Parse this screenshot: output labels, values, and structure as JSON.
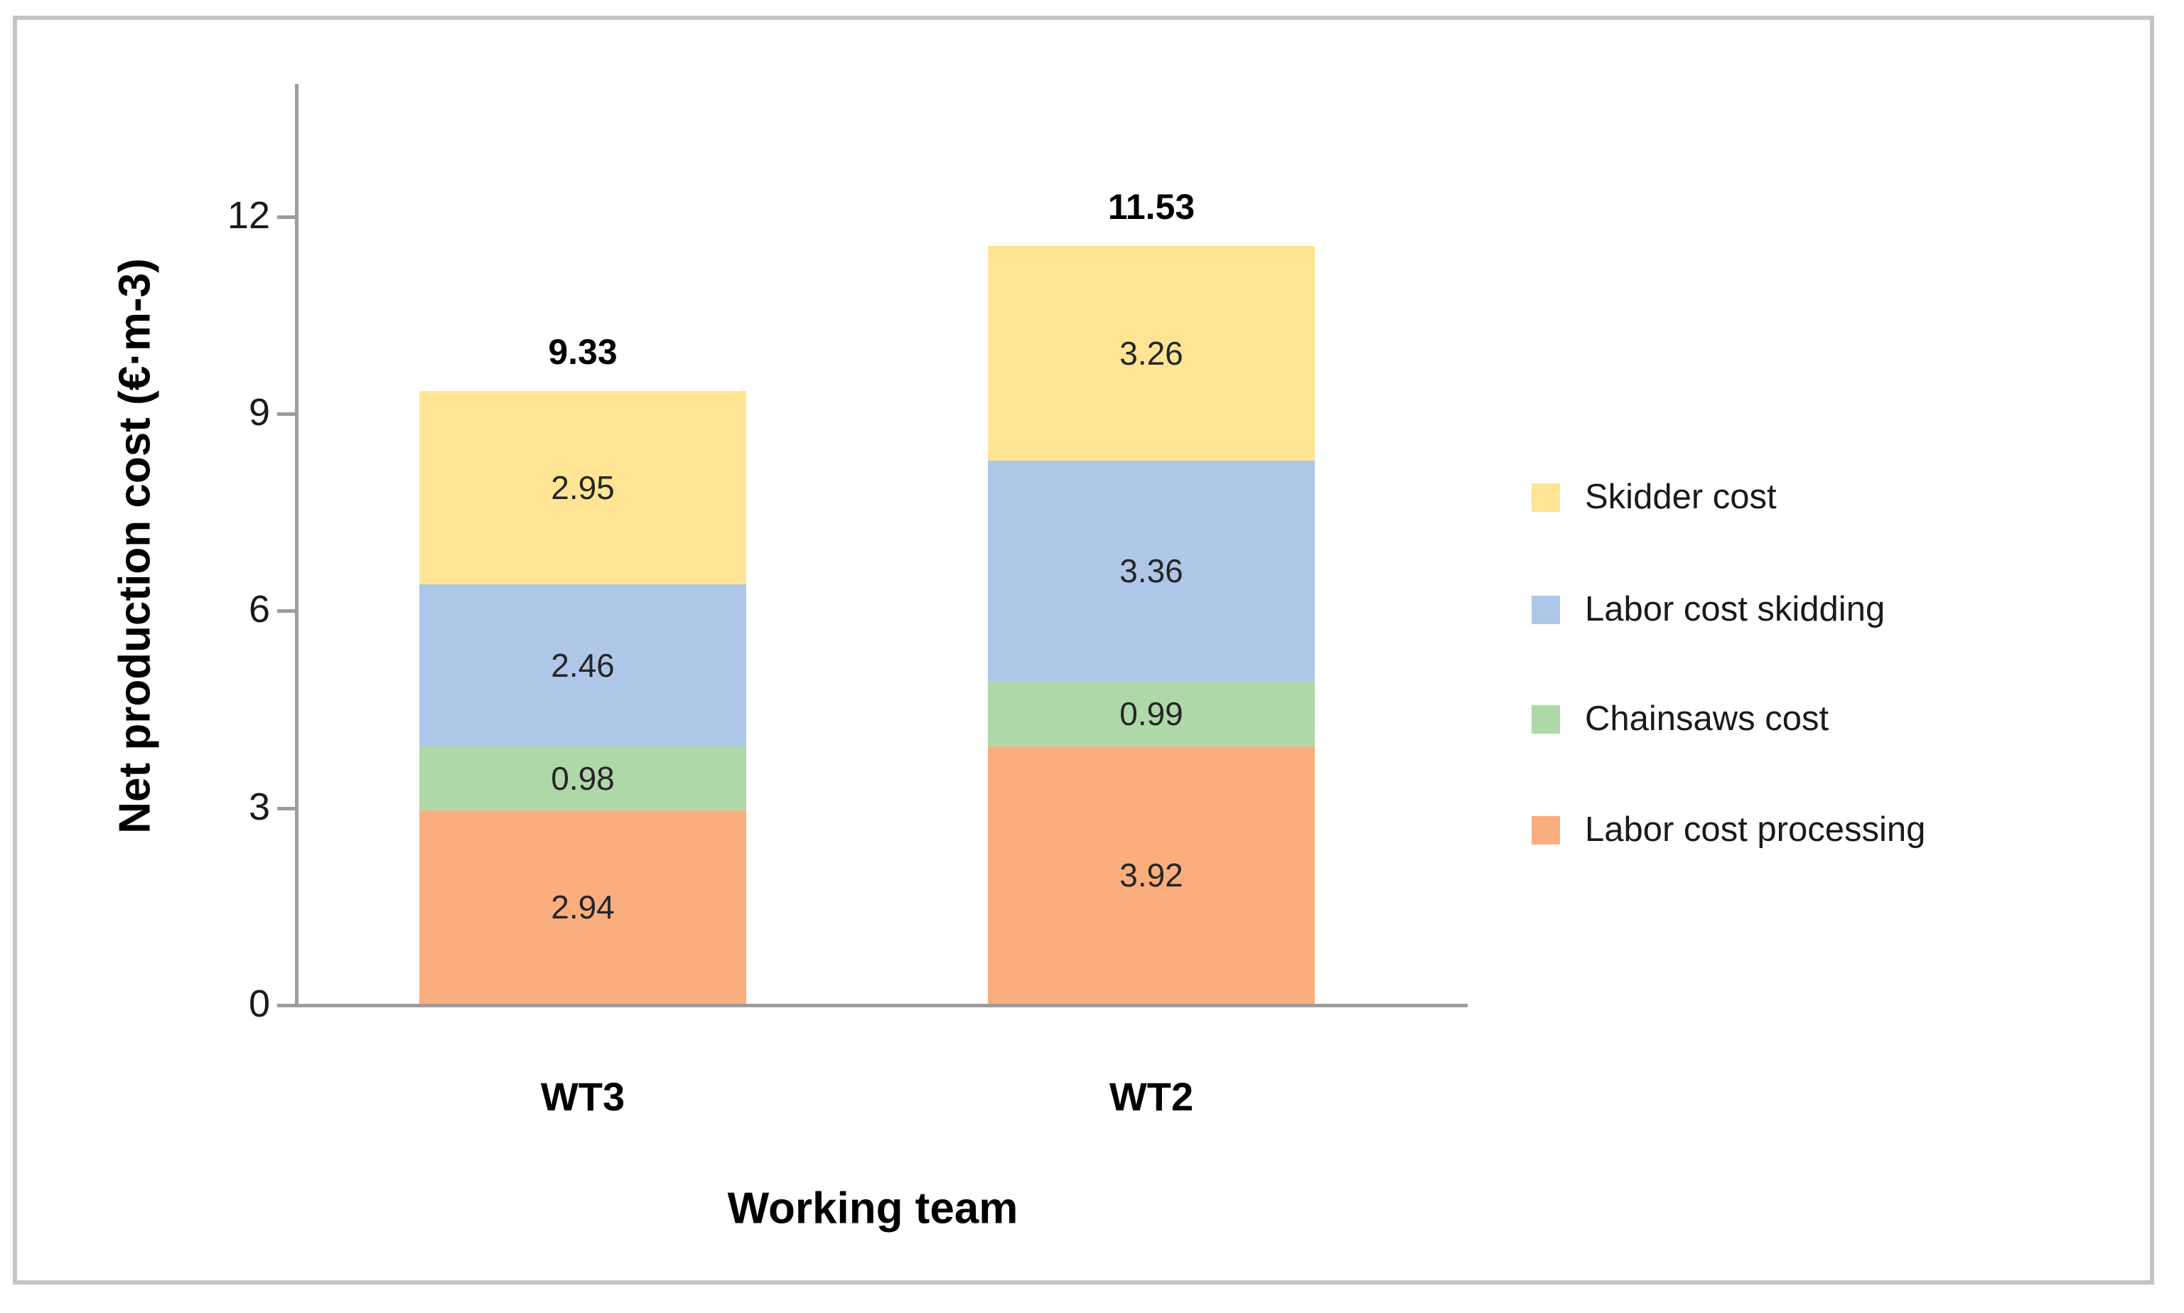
{
  "chart_data": {
    "type": "bar",
    "stacked": true,
    "title": "",
    "xlabel": "Working team",
    "ylabel": "Net production cost (€·m-3)",
    "categories": [
      "WT3",
      "WT2"
    ],
    "series": [
      {
        "name": "Labor cost processing",
        "color": "#FBAE7D",
        "values": [
          2.94,
          3.92
        ]
      },
      {
        "name": "Chainsaws cost",
        "color": "#AFD8A8",
        "values": [
          0.98,
          0.99
        ]
      },
      {
        "name": "Labor cost skidding",
        "color": "#AEC6E8",
        "values": [
          2.46,
          3.36
        ]
      },
      {
        "name": "Skidder cost",
        "color": "#FFE593",
        "values": [
          2.95,
          3.26
        ]
      }
    ],
    "totals": [
      9.33,
      11.53
    ],
    "y_ticks": [
      0,
      3,
      6,
      9,
      12
    ],
    "ylim": [
      0,
      14
    ],
    "grid": false,
    "legend_position": "right",
    "legend_order": [
      "Skidder cost",
      "Labor cost skidding",
      "Chainsaws cost",
      "Labor cost processing"
    ],
    "axis_color": "#9C9C9C",
    "frame_border_color": "#C4C4C4",
    "value_label_decimals": 2
  }
}
